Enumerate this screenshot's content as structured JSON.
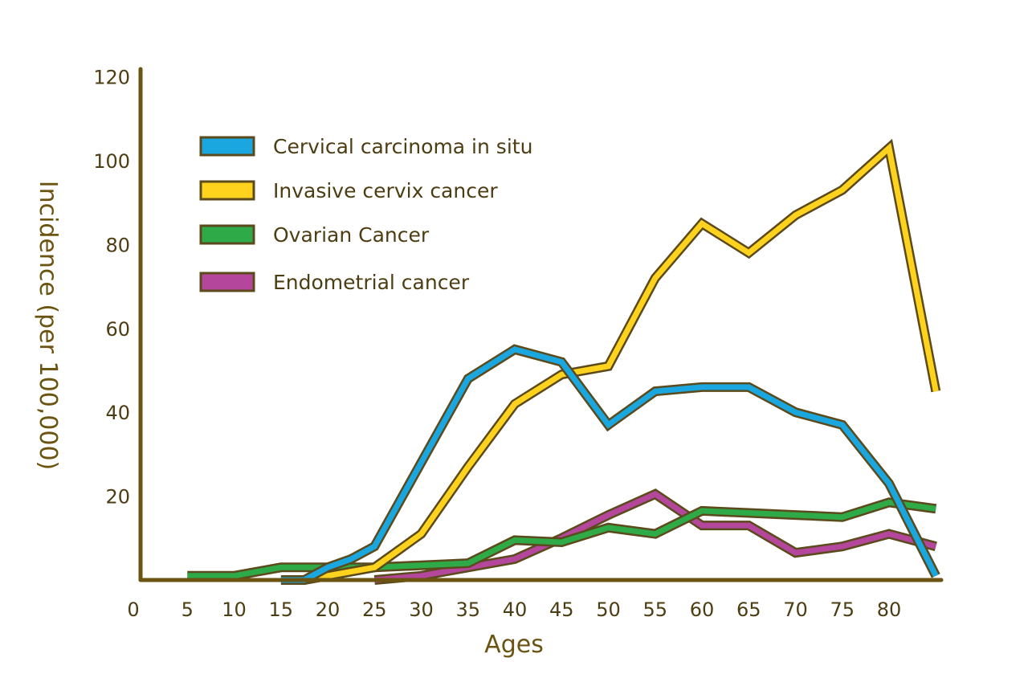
{
  "chart_data": {
    "type": "line",
    "title": "",
    "xlabel": "Ages",
    "ylabel": "Incidence (per 100,000)",
    "x_ticks": [
      "0",
      "5",
      "10",
      "15",
      "20",
      "25",
      "30",
      "35",
      "40",
      "45",
      "50",
      "55",
      "60",
      "65",
      "70",
      "75",
      "80"
    ],
    "y_ticks": [
      "20",
      "40",
      "60",
      "80",
      "100",
      "120"
    ],
    "xlim": [
      0,
      85
    ],
    "ylim": [
      0,
      120
    ],
    "grid": false,
    "legend_position": "top-left",
    "series": [
      {
        "name": "Cervical carcinoma in situ",
        "color": "#1aa7e0",
        "points": [
          [
            15,
            0
          ],
          [
            17.5,
            0
          ],
          [
            20,
            3
          ],
          [
            22.5,
            5
          ],
          [
            25,
            8
          ],
          [
            30,
            28
          ],
          [
            35,
            48
          ],
          [
            40,
            55
          ],
          [
            45,
            52
          ],
          [
            50,
            37
          ],
          [
            55,
            45
          ],
          [
            60,
            46
          ],
          [
            65,
            46
          ],
          [
            70,
            40
          ],
          [
            75,
            37
          ],
          [
            80,
            23
          ],
          [
            85,
            1
          ]
        ]
      },
      {
        "name": "Invasive cervix cancer",
        "color": "#ffd21e",
        "points": [
          [
            17.5,
            0
          ],
          [
            20,
            1
          ],
          [
            25,
            3
          ],
          [
            30,
            11
          ],
          [
            35,
            27
          ],
          [
            40,
            42
          ],
          [
            45,
            49
          ],
          [
            50,
            51
          ],
          [
            55,
            72
          ],
          [
            60,
            85
          ],
          [
            65,
            78
          ],
          [
            70,
            87
          ],
          [
            75,
            93
          ],
          [
            80,
            103
          ],
          [
            85,
            45
          ]
        ]
      },
      {
        "name": "Ovarian Cancer",
        "color": "#2faa48",
        "points": [
          [
            5,
            1
          ],
          [
            10,
            1
          ],
          [
            15,
            3
          ],
          [
            20,
            3
          ],
          [
            25,
            3
          ],
          [
            30,
            3.5
          ],
          [
            35,
            4
          ],
          [
            40,
            9.5
          ],
          [
            45,
            9
          ],
          [
            50,
            12.5
          ],
          [
            55,
            11
          ],
          [
            60,
            16.5
          ],
          [
            65,
            16
          ],
          [
            70,
            15.5
          ],
          [
            75,
            15
          ],
          [
            80,
            18.5
          ],
          [
            85,
            17
          ]
        ]
      },
      {
        "name": "Endometrial cancer",
        "color": "#b4469c",
        "points": [
          [
            25,
            0
          ],
          [
            30,
            1
          ],
          [
            35,
            3
          ],
          [
            40,
            5
          ],
          [
            45,
            10
          ],
          [
            50,
            15.5
          ],
          [
            55,
            20.5
          ],
          [
            60,
            13
          ],
          [
            65,
            13
          ],
          [
            70,
            6.5
          ],
          [
            75,
            8
          ],
          [
            80,
            11
          ],
          [
            85,
            8
          ]
        ]
      }
    ]
  }
}
